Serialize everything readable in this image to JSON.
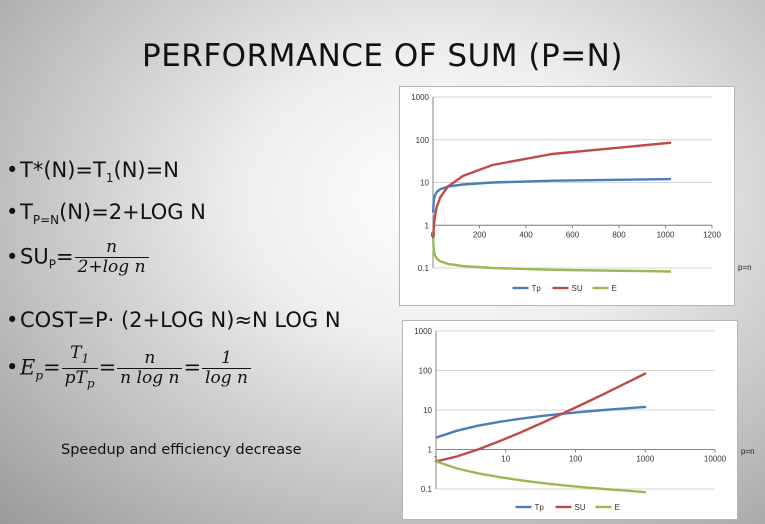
{
  "slide": {
    "title": "PERFORMANCE OF SUM (P=N)",
    "bullets": {
      "b1_pre": "T*(N)=T",
      "b1_sub": "1",
      "b1_post": "(N)=N",
      "b2_pre": "T",
      "b2_sub": "P=N",
      "b2_post": "(N)=2+LOG N",
      "b3_pre": "SU",
      "b3_sub": "P",
      "b3_eq": "=",
      "b3_num": "n",
      "b3_den": "2+log n",
      "b4": "COST=P· (2+LOG N)≈N LOG N",
      "b5_lhs": "E",
      "b5_lhs_sub": "p",
      "b5_eq": "=",
      "b5_f1_num": "T",
      "b5_f1_num_sub": "1",
      "b5_f1_den": "pT",
      "b5_f1_den_sub": "p",
      "b5_f2_num": "n",
      "b5_f2_den": "n log n",
      "b5_f3_num": "1",
      "b5_f3_den": "log n"
    },
    "note": "Speedup and efficiency decrease",
    "axis_side_label": "p=n"
  },
  "chart_data": [
    {
      "type": "line",
      "x_scale": "linear",
      "y_scale": "log",
      "x_ticks": [
        "0",
        "200",
        "400",
        "600",
        "800",
        "1000",
        "1200"
      ],
      "y_ticks": [
        "0.1",
        "1",
        "10",
        "100",
        "1000"
      ],
      "xlim": [
        0,
        1200
      ],
      "ylim": [
        0.1,
        1000
      ],
      "grid": true,
      "legend": "bottom",
      "x": [
        1,
        2,
        4,
        8,
        16,
        32,
        64,
        128,
        256,
        512,
        1024
      ],
      "series": [
        {
          "name": "Tp",
          "color": "#4a7ebb",
          "values": [
            2,
            3,
            4,
            5,
            6,
            7,
            8,
            9,
            10,
            11,
            12
          ]
        },
        {
          "name": "SU",
          "color": "#be4b48",
          "values": [
            0.5,
            0.67,
            1,
            1.6,
            2.67,
            4.57,
            8,
            14.2,
            25.6,
            46.5,
            85.3
          ]
        },
        {
          "name": "E",
          "color": "#98b954",
          "values": [
            0.5,
            0.33,
            0.25,
            0.2,
            0.167,
            0.143,
            0.125,
            0.111,
            0.1,
            0.091,
            0.083
          ]
        }
      ]
    },
    {
      "type": "line",
      "x_scale": "log",
      "y_scale": "log",
      "x_ticks": [
        "1",
        "10",
        "100",
        "1000",
        "10000"
      ],
      "y_ticks": [
        "0.1",
        "1",
        "10",
        "100",
        "1000"
      ],
      "xlim": [
        1,
        10000
      ],
      "ylim": [
        0.1,
        1000
      ],
      "grid": true,
      "legend": "bottom",
      "x": [
        1,
        2,
        4,
        8,
        16,
        32,
        64,
        128,
        256,
        512,
        1024
      ],
      "series": [
        {
          "name": "Tp",
          "color": "#4a7ebb",
          "values": [
            2,
            3,
            4,
            5,
            6,
            7,
            8,
            9,
            10,
            11,
            12
          ]
        },
        {
          "name": "SU",
          "color": "#be4b48",
          "values": [
            0.5,
            0.67,
            1,
            1.6,
            2.67,
            4.57,
            8,
            14.2,
            25.6,
            46.5,
            85.3
          ]
        },
        {
          "name": "E",
          "color": "#98b954",
          "values": [
            0.5,
            0.33,
            0.25,
            0.2,
            0.167,
            0.143,
            0.125,
            0.111,
            0.1,
            0.091,
            0.083
          ]
        }
      ]
    }
  ]
}
